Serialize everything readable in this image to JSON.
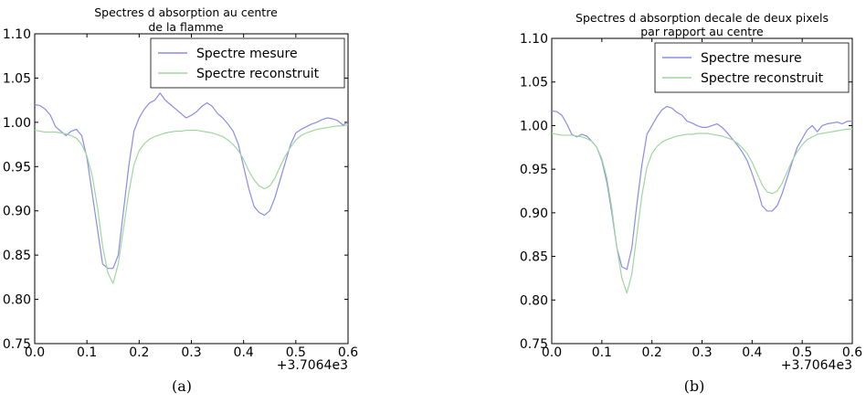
{
  "chart_data": [
    {
      "type": "line",
      "title": "Spectres d absorption au centre\nde la flamme",
      "caption": "(a)",
      "xlim": [
        0.0,
        0.6
      ],
      "ylim": [
        0.75,
        1.1
      ],
      "xticks": [
        "0.0",
        "0.1",
        "0.2",
        "0.3",
        "0.4",
        "0.5",
        "0.6"
      ],
      "yticks": [
        "0.75",
        "0.80",
        "0.85",
        "0.90",
        "0.95",
        "1.00",
        "1.05",
        "1.10"
      ],
      "offset_label": "+3.7064e3",
      "legend_position": "upper-right",
      "grid": false,
      "x": [
        0.0,
        0.01,
        0.02,
        0.03,
        0.04,
        0.05,
        0.06,
        0.07,
        0.08,
        0.09,
        0.1,
        0.11,
        0.12,
        0.13,
        0.14,
        0.15,
        0.16,
        0.17,
        0.18,
        0.19,
        0.2,
        0.21,
        0.22,
        0.23,
        0.24,
        0.25,
        0.26,
        0.27,
        0.28,
        0.29,
        0.3,
        0.31,
        0.32,
        0.33,
        0.34,
        0.35,
        0.36,
        0.37,
        0.38,
        0.39,
        0.4,
        0.41,
        0.42,
        0.43,
        0.44,
        0.45,
        0.46,
        0.47,
        0.48,
        0.49,
        0.5,
        0.51,
        0.52,
        0.53,
        0.54,
        0.55,
        0.56,
        0.57,
        0.58,
        0.59,
        0.6
      ],
      "series": [
        {
          "name": "Spectre mesure",
          "color": "#8b8be8",
          "values": [
            1.02,
            1.019,
            1.015,
            1.008,
            0.995,
            0.99,
            0.985,
            0.99,
            0.992,
            0.985,
            0.96,
            0.92,
            0.88,
            0.84,
            0.835,
            0.835,
            0.85,
            0.9,
            0.95,
            0.99,
            1.005,
            1.015,
            1.022,
            1.025,
            1.033,
            1.025,
            1.02,
            1.015,
            1.01,
            1.005,
            1.008,
            1.012,
            1.018,
            1.022,
            1.018,
            1.01,
            1.005,
            0.998,
            0.99,
            0.975,
            0.95,
            0.925,
            0.905,
            0.898,
            0.895,
            0.9,
            0.915,
            0.935,
            0.955,
            0.975,
            0.988,
            0.992,
            0.995,
            0.998,
            1.0,
            1.003,
            1.005,
            1.004,
            1.002,
            0.997,
            1.0
          ]
        },
        {
          "name": "Spectre reconstruit",
          "color": "#9fd69f",
          "values": [
            0.991,
            0.99,
            0.989,
            0.989,
            0.989,
            0.988,
            0.987,
            0.985,
            0.982,
            0.975,
            0.962,
            0.94,
            0.905,
            0.86,
            0.83,
            0.818,
            0.84,
            0.88,
            0.92,
            0.952,
            0.968,
            0.976,
            0.981,
            0.984,
            0.986,
            0.988,
            0.989,
            0.99,
            0.99,
            0.991,
            0.991,
            0.991,
            0.99,
            0.989,
            0.988,
            0.986,
            0.984,
            0.98,
            0.975,
            0.968,
            0.958,
            0.945,
            0.935,
            0.928,
            0.925,
            0.928,
            0.937,
            0.95,
            0.962,
            0.972,
            0.98,
            0.985,
            0.988,
            0.99,
            0.992,
            0.993,
            0.994,
            0.995,
            0.996,
            0.996,
            0.997
          ]
        }
      ]
    },
    {
      "type": "line",
      "title": "Spectres d absorption decale de deux pixels\npar rapport au centre",
      "caption": "(b)",
      "xlim": [
        0.0,
        0.6
      ],
      "ylim": [
        0.75,
        1.1
      ],
      "xticks": [
        "0.0",
        "0.1",
        "0.2",
        "0.3",
        "0.4",
        "0.5",
        "0.6"
      ],
      "yticks": [
        "0.75",
        "0.80",
        "0.85",
        "0.90",
        "0.95",
        "1.00",
        "1.05",
        "1.10"
      ],
      "offset_label": "+3.7064e3",
      "legend_position": "upper-right",
      "grid": false,
      "x": [
        0.0,
        0.01,
        0.02,
        0.03,
        0.04,
        0.05,
        0.06,
        0.07,
        0.08,
        0.09,
        0.1,
        0.11,
        0.12,
        0.13,
        0.14,
        0.15,
        0.16,
        0.17,
        0.18,
        0.19,
        0.2,
        0.21,
        0.22,
        0.23,
        0.24,
        0.25,
        0.26,
        0.27,
        0.28,
        0.29,
        0.3,
        0.31,
        0.32,
        0.33,
        0.34,
        0.35,
        0.36,
        0.37,
        0.38,
        0.39,
        0.4,
        0.41,
        0.42,
        0.43,
        0.44,
        0.45,
        0.46,
        0.47,
        0.48,
        0.49,
        0.5,
        0.51,
        0.52,
        0.53,
        0.54,
        0.55,
        0.56,
        0.57,
        0.58,
        0.59,
        0.6
      ],
      "series": [
        {
          "name": "Spectre mesure",
          "color": "#8b8be8",
          "values": [
            1.017,
            1.016,
            1.012,
            1.002,
            0.99,
            0.987,
            0.99,
            0.988,
            0.982,
            0.975,
            0.96,
            0.935,
            0.9,
            0.86,
            0.838,
            0.835,
            0.86,
            0.91,
            0.955,
            0.99,
            1.0,
            1.01,
            1.018,
            1.022,
            1.02,
            1.015,
            1.012,
            1.005,
            1.003,
            1.0,
            0.998,
            0.998,
            1.0,
            1.002,
            0.998,
            0.992,
            0.985,
            0.978,
            0.97,
            0.96,
            0.945,
            0.928,
            0.908,
            0.902,
            0.902,
            0.908,
            0.922,
            0.94,
            0.958,
            0.975,
            0.985,
            0.995,
            1.0,
            0.993,
            1.0,
            1.002,
            1.003,
            1.004,
            1.002,
            1.005,
            1.005
          ]
        },
        {
          "name": "Spectre reconstruit",
          "color": "#9fd69f",
          "values": [
            0.991,
            0.99,
            0.989,
            0.989,
            0.989,
            0.988,
            0.987,
            0.985,
            0.982,
            0.975,
            0.962,
            0.94,
            0.905,
            0.86,
            0.825,
            0.808,
            0.83,
            0.875,
            0.92,
            0.952,
            0.968,
            0.976,
            0.981,
            0.984,
            0.986,
            0.988,
            0.989,
            0.99,
            0.99,
            0.991,
            0.991,
            0.991,
            0.99,
            0.989,
            0.988,
            0.986,
            0.984,
            0.98,
            0.975,
            0.968,
            0.958,
            0.945,
            0.932,
            0.924,
            0.922,
            0.925,
            0.934,
            0.947,
            0.96,
            0.97,
            0.978,
            0.984,
            0.987,
            0.99,
            0.991,
            0.992,
            0.993,
            0.994,
            0.995,
            0.996,
            0.996
          ]
        }
      ]
    }
  ]
}
